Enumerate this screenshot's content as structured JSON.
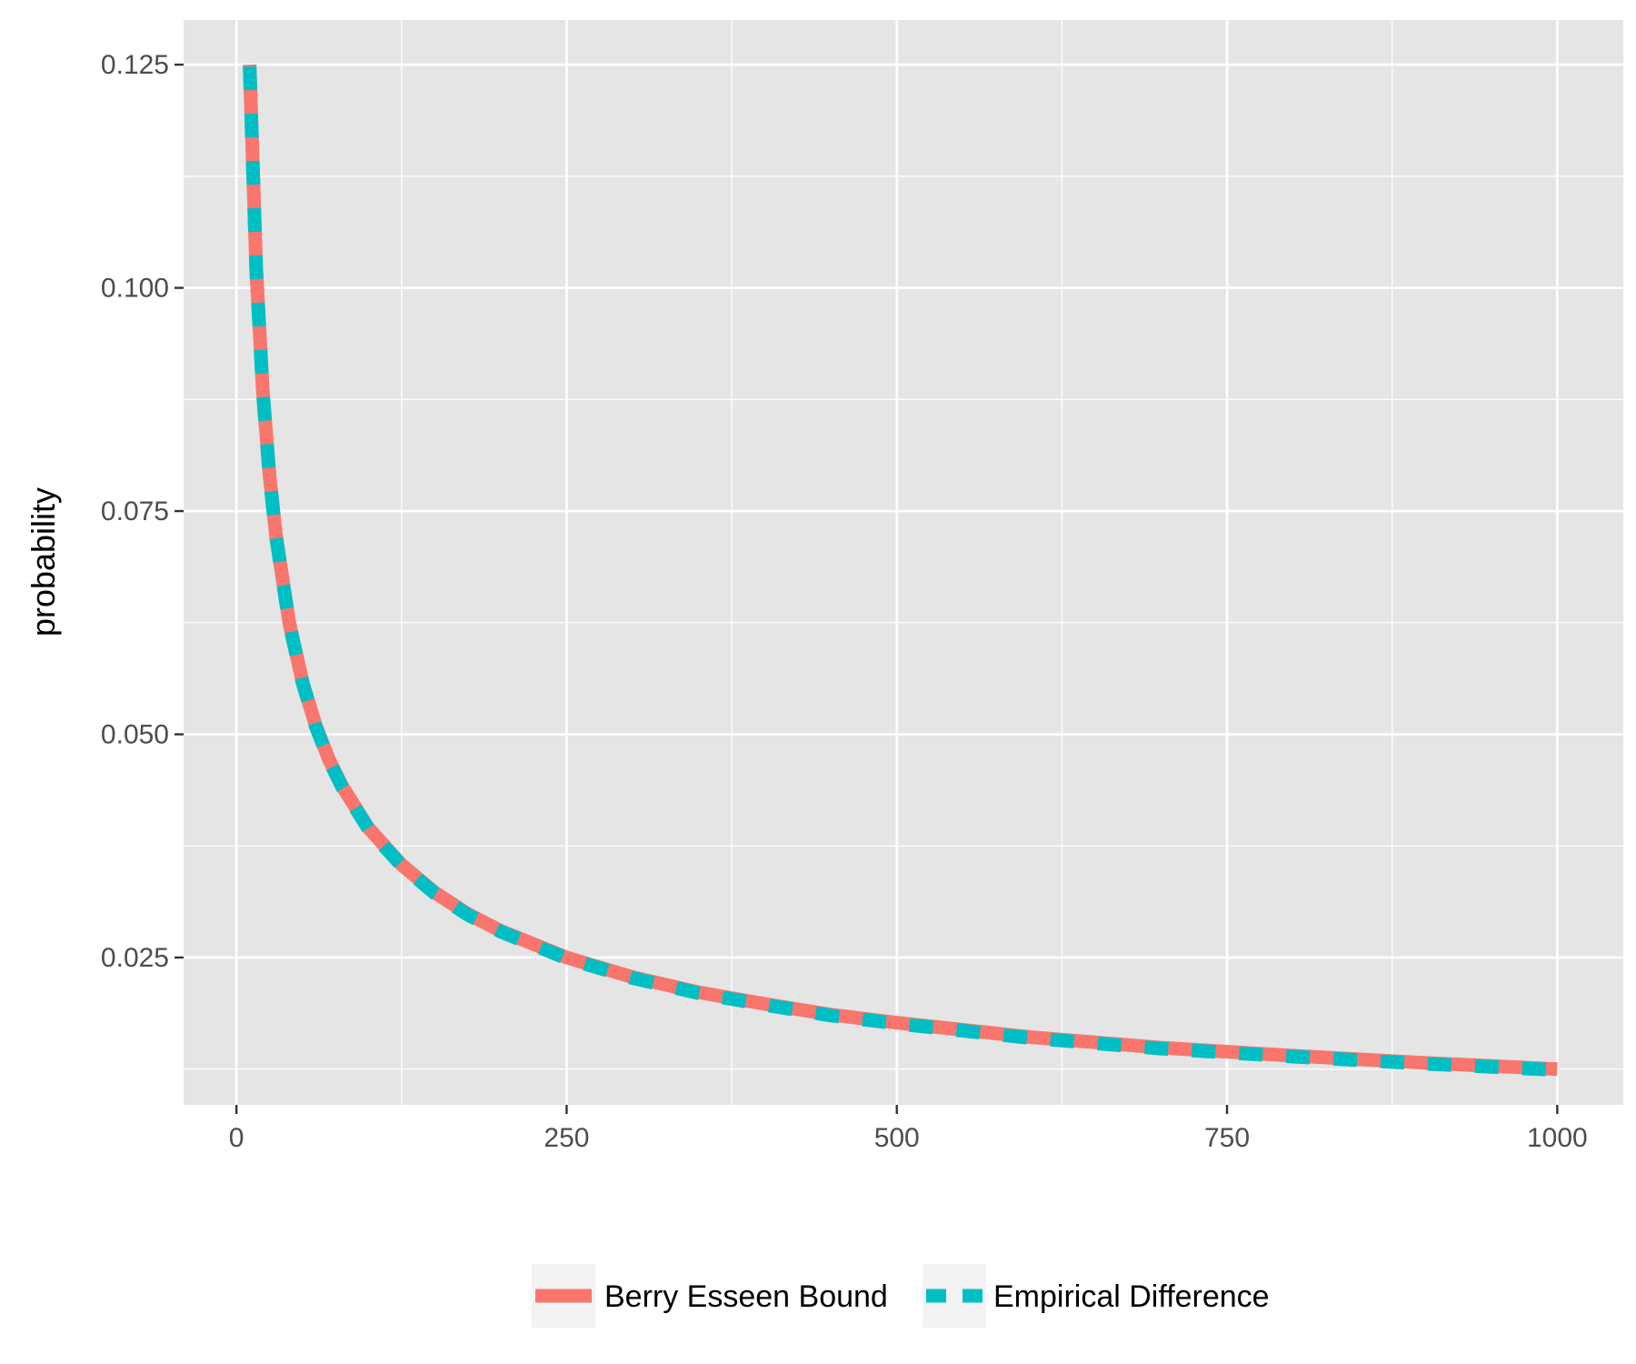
{
  "chart_data": {
    "type": "line",
    "title": "",
    "xlabel": "",
    "ylabel": "probability",
    "xlim": [
      -40,
      1050
    ],
    "ylim": [
      0.0085,
      0.13
    ],
    "xticks": [
      0,
      250,
      500,
      750,
      1000
    ],
    "xtick_labels": [
      "0",
      "250",
      "500",
      "750",
      "1000"
    ],
    "yticks": [
      0.025,
      0.05,
      0.075,
      0.1,
      0.125
    ],
    "ytick_labels": [
      "0.025",
      "0.050",
      "0.075",
      "0.100",
      "0.125"
    ],
    "grid": true,
    "legend_position": "bottom",
    "x": [
      10,
      15,
      20,
      25,
      30,
      40,
      50,
      60,
      70,
      80,
      100,
      125,
      150,
      175,
      200,
      250,
      300,
      350,
      400,
      450,
      500,
      600,
      700,
      800,
      900,
      1000
    ],
    "series": [
      {
        "name": "Berry Esseen Bound",
        "color": "#F8766D",
        "style": "solid",
        "values": [
          0.125,
          0.1021,
          0.0884,
          0.0791,
          0.0722,
          0.0625,
          0.0559,
          0.051,
          0.0472,
          0.0442,
          0.0395,
          0.0354,
          0.0323,
          0.0299,
          0.028,
          0.025,
          0.0228,
          0.0211,
          0.0198,
          0.0186,
          0.0177,
          0.0161,
          0.0149,
          0.014,
          0.0132,
          0.0125
        ]
      },
      {
        "name": "Empirical Difference",
        "color": "#00BFC4",
        "style": "dashed",
        "values": [
          0.1248,
          0.1019,
          0.0883,
          0.079,
          0.0721,
          0.0624,
          0.0558,
          0.0509,
          0.0471,
          0.0441,
          0.0394,
          0.0353,
          0.0322,
          0.0298,
          0.0279,
          0.0249,
          0.0227,
          0.021,
          0.0197,
          0.0185,
          0.0176,
          0.016,
          0.0148,
          0.0139,
          0.0131,
          0.0124
        ]
      }
    ]
  }
}
